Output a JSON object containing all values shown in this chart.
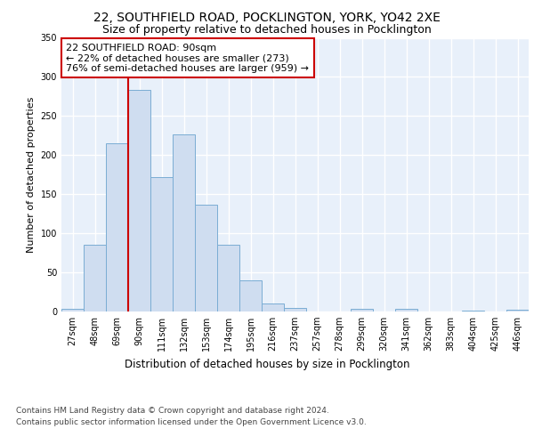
{
  "title1": "22, SOUTHFIELD ROAD, POCKLINGTON, YORK, YO42 2XE",
  "title2": "Size of property relative to detached houses in Pocklington",
  "xlabel": "Distribution of detached houses by size in Pocklington",
  "ylabel": "Number of detached properties",
  "bar_labels": [
    "27sqm",
    "48sqm",
    "69sqm",
    "90sqm",
    "111sqm",
    "132sqm",
    "153sqm",
    "174sqm",
    "195sqm",
    "216sqm",
    "237sqm",
    "257sqm",
    "278sqm",
    "299sqm",
    "320sqm",
    "341sqm",
    "362sqm",
    "383sqm",
    "404sqm",
    "425sqm",
    "446sqm"
  ],
  "bar_values": [
    3,
    85,
    215,
    283,
    172,
    226,
    137,
    85,
    40,
    10,
    4,
    0,
    0,
    3,
    0,
    3,
    0,
    0,
    1,
    0,
    2
  ],
  "bar_color": "#cfddf0",
  "bar_edge_color": "#7aadd4",
  "annotation_box_text": "22 SOUTHFIELD ROAD: 90sqm\n← 22% of detached houses are smaller (273)\n76% of semi-detached houses are larger (959) →",
  "vline_x_index": 3,
  "vline_color": "#cc0000",
  "ylim": [
    0,
    350
  ],
  "yticks": [
    0,
    50,
    100,
    150,
    200,
    250,
    300,
    350
  ],
  "footnote1": "Contains HM Land Registry data © Crown copyright and database right 2024.",
  "footnote2": "Contains public sector information licensed under the Open Government Licence v3.0.",
  "background_color": "#e8f0fa",
  "grid_color": "#ffffff",
  "title1_fontsize": 10,
  "title2_fontsize": 9,
  "xlabel_fontsize": 8.5,
  "ylabel_fontsize": 8,
  "tick_fontsize": 7,
  "annotation_fontsize": 8,
  "footnote_fontsize": 6.5
}
